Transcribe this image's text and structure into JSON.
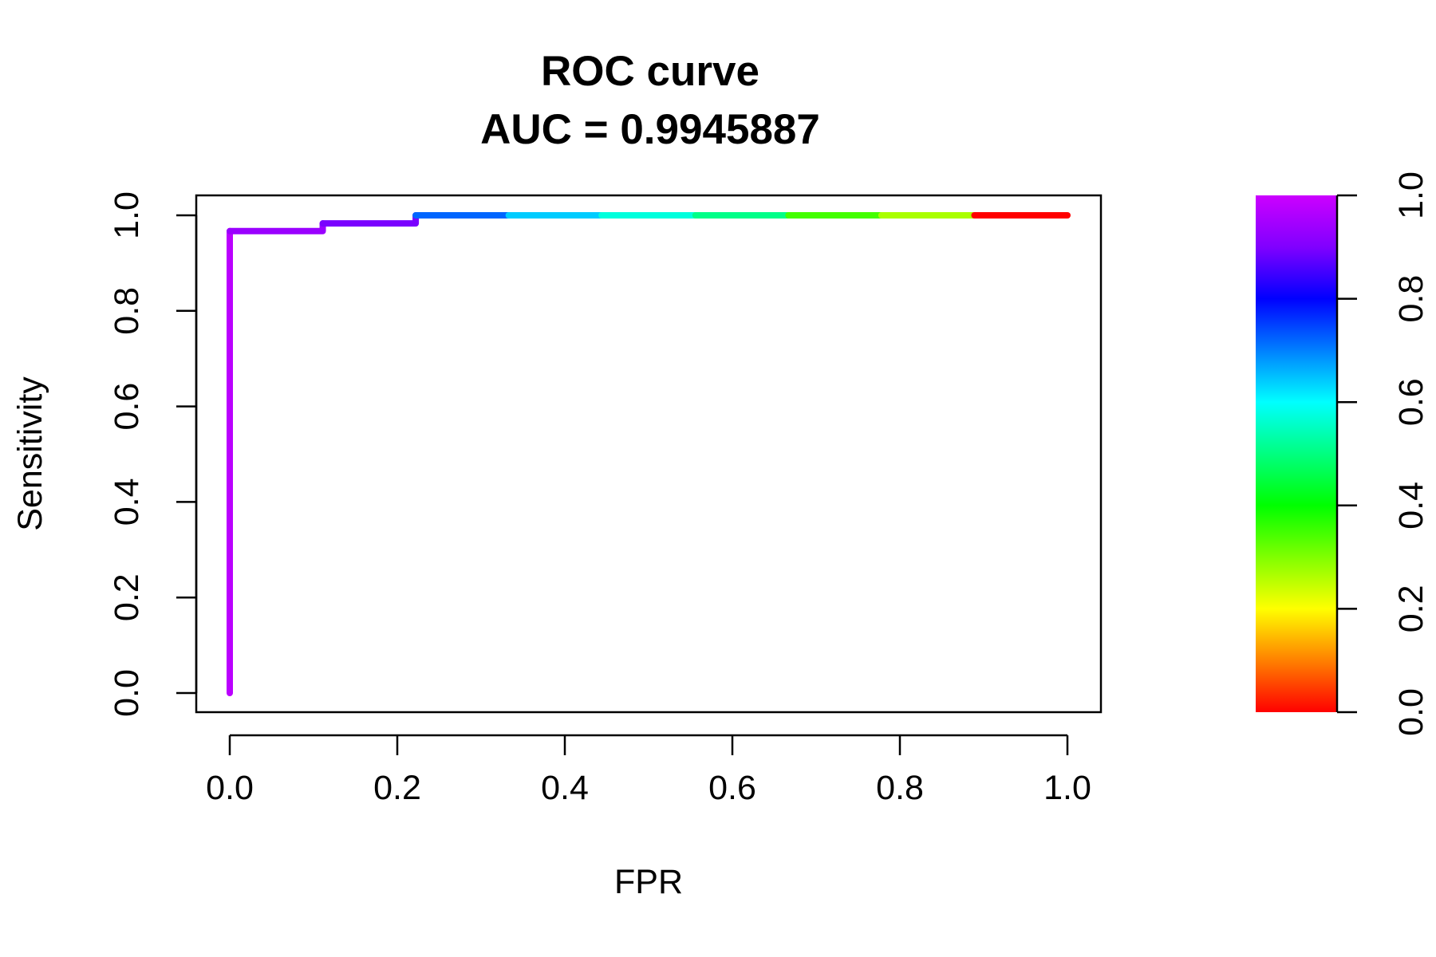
{
  "chart_data": {
    "type": "line",
    "title": "ROC curve",
    "subtitle": "AUC = 0.9945887",
    "xlabel": "FPR",
    "ylabel": "Sensitivity",
    "xlim": [
      0,
      1
    ],
    "ylim": [
      0,
      1
    ],
    "x_ticks": [
      "0.0",
      "0.2",
      "0.4",
      "0.6",
      "0.8",
      "1.0"
    ],
    "y_ticks": [
      "0.0",
      "0.2",
      "0.4",
      "0.6",
      "0.8",
      "1.0"
    ],
    "grid": false,
    "legend": "colorbar-right",
    "segments": [
      {
        "x": [
          0.0,
          0.0
        ],
        "y": [
          0.0,
          0.967
        ],
        "color": "#bb00ff"
      },
      {
        "x": [
          0.0,
          0.111,
          0.111
        ],
        "y": [
          0.967,
          0.967,
          0.983
        ],
        "color": "#9a00ff"
      },
      {
        "x": [
          0.111,
          0.222,
          0.222
        ],
        "y": [
          0.983,
          0.983,
          1.0
        ],
        "color": "#7a00ff"
      },
      {
        "x": [
          0.222,
          0.333
        ],
        "y": [
          1.0,
          1.0
        ],
        "color": "#0066ff"
      },
      {
        "x": [
          0.333,
          0.444
        ],
        "y": [
          1.0,
          1.0
        ],
        "color": "#00ccff"
      },
      {
        "x": [
          0.444,
          0.556
        ],
        "y": [
          1.0,
          1.0
        ],
        "color": "#00ffdd"
      },
      {
        "x": [
          0.556,
          0.667
        ],
        "y": [
          1.0,
          1.0
        ],
        "color": "#00ff88"
      },
      {
        "x": [
          0.667,
          0.778
        ],
        "y": [
          1.0,
          1.0
        ],
        "color": "#44ff00"
      },
      {
        "x": [
          0.778,
          0.889
        ],
        "y": [
          1.0,
          1.0
        ],
        "color": "#aaff00"
      },
      {
        "x": [
          0.889,
          1.0
        ],
        "y": [
          1.0,
          1.0
        ],
        "color": "#ff0000"
      }
    ],
    "colorbar": {
      "range": [
        0,
        1
      ],
      "ticks": [
        "0.0",
        "0.2",
        "0.4",
        "0.6",
        "0.8",
        "1.0"
      ],
      "colors": [
        "#ff0000",
        "#ff8000",
        "#ffff00",
        "#80ff00",
        "#00ff00",
        "#00ff80",
        "#00ffff",
        "#0080ff",
        "#0000ff",
        "#8000ff",
        "#cc00ff"
      ]
    }
  }
}
